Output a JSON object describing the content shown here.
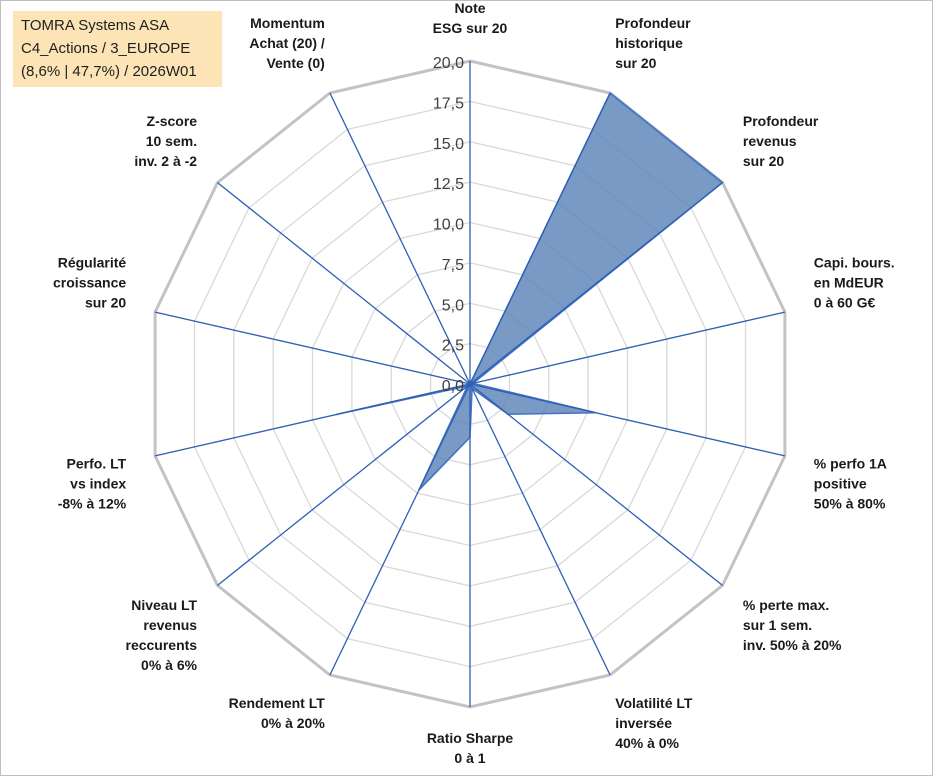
{
  "header": {
    "line1": "TOMRA Systems ASA",
    "line2": "C4_Actions / 3_EUROPE",
    "line3": "(8,6% | 47,7%) / 2026W01"
  },
  "colors": {
    "fill": "#5b84b8",
    "fill_stroke": "#4472c4",
    "spokes": "#2f5fb3",
    "grid_outer": "#c3c3c3",
    "grid_inner": "#d9d9d9"
  },
  "chart_data": {
    "type": "radar",
    "rmin": 0,
    "rmax": 20,
    "tick_labels": [
      "0,0",
      "2,5",
      "5,0",
      "7,5",
      "10,0",
      "12,5",
      "15,0",
      "17,5",
      "20,0"
    ],
    "grid": true,
    "legend": "none",
    "axes": [
      [
        "Note",
        "ESG sur 20"
      ],
      [
        "Profondeur",
        "historique",
        "sur 20"
      ],
      [
        "Profondeur",
        "revenus",
        "sur 20"
      ],
      [
        "Capi. bours.",
        "en MdEUR",
        "0 à 60 G€"
      ],
      [
        "% perfo 1A",
        "positive",
        "50% à 80%"
      ],
      [
        "% perte max.",
        "sur 1 sem.",
        "inv. 50% à 20%"
      ],
      [
        "Volatilité LT",
        "inversée",
        "40% à 0%"
      ],
      [
        "Ratio Sharpe",
        "0 à 1"
      ],
      [
        "Rendement LT",
        "0% à 20%"
      ],
      [
        "Niveau LT",
        "revenus",
        "reccurents",
        "0% à 6%"
      ],
      [
        "Perfo. LT",
        "vs index",
        "-8% à 12%"
      ],
      [
        "Régularité",
        "croissance",
        "sur 20"
      ],
      [
        "Z-score",
        "10 sem.",
        "inv. 2 à -2"
      ],
      [
        "Momentum",
        "Achat (20) /",
        "Vente (0)"
      ]
    ],
    "series": [
      {
        "values": [
          0,
          20,
          20,
          0.2,
          8,
          3,
          0.3,
          3.3,
          7.3,
          0.2,
          8.5,
          0,
          0,
          0
        ]
      }
    ]
  }
}
